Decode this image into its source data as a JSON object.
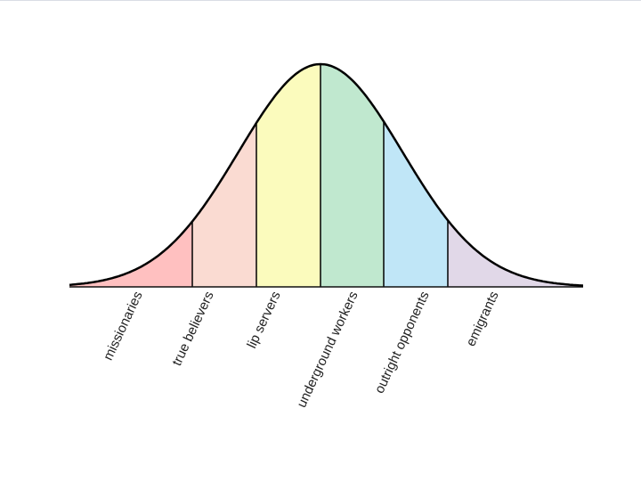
{
  "diagram": {
    "type": "bell-curve",
    "segments": [
      {
        "label": "missionaries",
        "color": "#ffc0c0"
      },
      {
        "label": "true believers",
        "color": "#fadbd2"
      },
      {
        "label": "lip servers",
        "color": "#fbfbbd"
      },
      {
        "label": "underground workers",
        "color": "#c0e8cf"
      },
      {
        "label": "outright opponents",
        "color": "#c0e6f7"
      },
      {
        "label": "emigrants",
        "color": "#e1d8e8"
      }
    ]
  }
}
